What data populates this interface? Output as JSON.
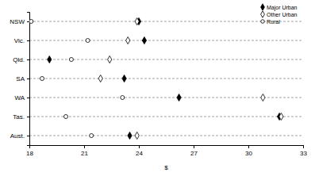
{
  "chart_data": {
    "type": "dot",
    "x_label": "$",
    "categories": [
      "NSW",
      "Vic.",
      "Qld.",
      "SA",
      "WA",
      "Tas.",
      "Aust."
    ],
    "series": [
      {
        "name": "Major Urban",
        "color": "#000000",
        "marker": "diamond",
        "values": [
          24.0,
          24.3,
          19.1,
          23.2,
          26.2,
          31.7,
          23.5
        ]
      },
      {
        "name": "Other Urban",
        "color": "#000000",
        "marker": "diamond-open",
        "values": [
          23.9,
          23.4,
          22.4,
          21.9,
          30.8,
          31.8,
          23.9
        ]
      },
      {
        "name": "Rural",
        "color": "#000000",
        "marker": "circle-open",
        "values": [
          18.1,
          21.2,
          20.3,
          18.7,
          23.1,
          20.0,
          21.4
        ]
      }
    ],
    "xlim": [
      18,
      33
    ],
    "xticks": [
      18,
      21,
      24,
      27,
      30,
      33
    ],
    "grid": true,
    "legend": "top-right"
  }
}
